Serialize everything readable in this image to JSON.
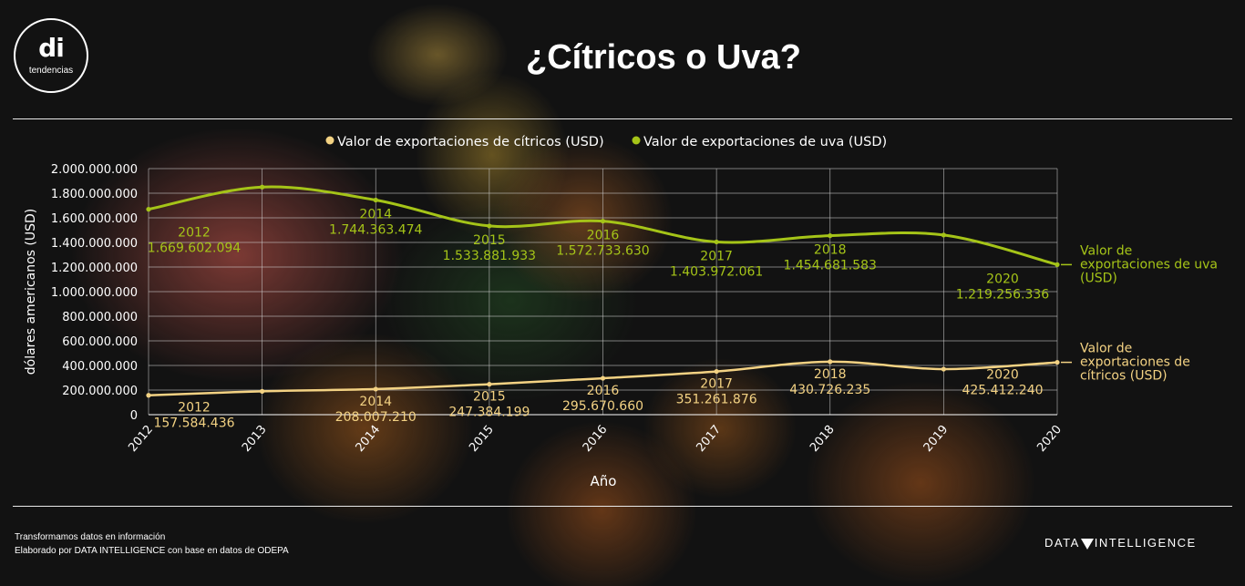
{
  "logo": {
    "mark": "di",
    "name": "tendencias"
  },
  "title": "¿Cítricos o Uva?",
  "footer": {
    "line1": "Transformamos datos en información",
    "line2": "Elaborado por DATA INTELLIGENCE con base en datos de ODEPA",
    "brand_left": "DATA",
    "brand_right": "INTELLIGENCE"
  },
  "colors": {
    "citricos": "#f3d283",
    "uva": "#a5c418",
    "grid": "#d0d0d0"
  },
  "chart_data": {
    "type": "line",
    "x": [
      "2012",
      "2013",
      "2014",
      "2015",
      "2016",
      "2017",
      "2018",
      "2019",
      "2020"
    ],
    "xlabel": "Año",
    "ylabel": "dólares americanos (USD)",
    "ylim": [
      0,
      2000000000
    ],
    "yticks": [
      "0",
      "200.000.000",
      "400.000.000",
      "600.000.000",
      "800.000.000",
      "1.000.000.000",
      "1.200.000.000",
      "1.400.000.000",
      "1.600.000.000",
      "1.800.000.000",
      "2.000.000.000"
    ],
    "grid": true,
    "legend": "top",
    "series": [
      {
        "name": "Valor de exportaciones de cítricos (USD)",
        "end_label": [
          "Valor de",
          "exportaciones de",
          "cítricos (USD)"
        ],
        "values": [
          157584436,
          190000000,
          208007210,
          247384199,
          295670660,
          351261876,
          430726235,
          370000000,
          425412240
        ],
        "labels": [
          {
            "year": "2012",
            "value": "157.584.436"
          },
          null,
          {
            "year": "2014",
            "value": "208.007.210"
          },
          {
            "year": "2015",
            "value": "247.384.199"
          },
          {
            "year": "2016",
            "value": "295.670.660"
          },
          {
            "year": "2017",
            "value": "351.261.876"
          },
          {
            "year": "2018",
            "value": "430.726.235"
          },
          null,
          {
            "year": "2020",
            "value": "425.412.240"
          }
        ]
      },
      {
        "name": "Valor de exportaciones de uva (USD)",
        "end_label": [
          "Valor de",
          "exportaciones de uva",
          "(USD)"
        ],
        "values": [
          1669602094,
          1850000000,
          1744363474,
          1533881933,
          1572733630,
          1403972061,
          1454681583,
          1460000000,
          1219256336
        ],
        "labels": [
          {
            "year": "2012",
            "value": "1.669.602.094"
          },
          null,
          {
            "year": "2014",
            "value": "1.744.363.474"
          },
          {
            "year": "2015",
            "value": "1.533.881.933"
          },
          {
            "year": "2016",
            "value": "1.572.733.630"
          },
          {
            "year": "2017",
            "value": "1.403.972.061"
          },
          {
            "year": "2018",
            "value": "1.454.681.583"
          },
          null,
          {
            "year": "2020",
            "value": "1.219.256.336"
          }
        ]
      }
    ]
  }
}
